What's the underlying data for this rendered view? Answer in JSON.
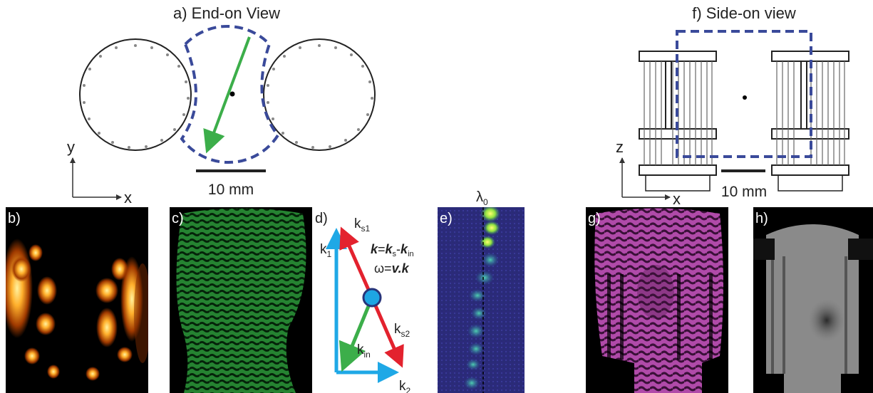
{
  "end_on": {
    "title": "a) End-on View",
    "scale_label": "10 mm",
    "axis_x": "x",
    "axis_y": "y"
  },
  "side_on": {
    "title": "f) Side-on view",
    "scale_label": "10 mm",
    "axis_x": "x",
    "axis_z": "z"
  },
  "panels": {
    "b": "b)",
    "c": "c)",
    "d": "d)",
    "e": "e)",
    "g": "g)",
    "h": "h)"
  },
  "vector_diagram": {
    "k1": "k",
    "k1_sub": "1",
    "ks1": "k",
    "ks1_sub": "s1",
    "ks2": "k",
    "ks2_sub": "s2",
    "kin": "k",
    "kin_sub": "in",
    "k2": "k",
    "k2_sub": "2",
    "eq1_k": "k",
    "eq1_eq": "=",
    "eq1_ks": "k",
    "eq1_ks_sub": "s",
    "eq1_minus": "-",
    "eq1_kin": "k",
    "eq1_kin_sub": "in",
    "eq2_omega": "ω=",
    "eq2_v": "v.k"
  },
  "spectrum": {
    "label": "λ",
    "label_sub": "0"
  },
  "colors": {
    "dashed_outline": "#3a4a9a",
    "green_arrow": "#3cae4a",
    "red_arrow": "#e3222e",
    "blue_arrow": "#1fa8e6",
    "particle": "#1ea5e3"
  }
}
